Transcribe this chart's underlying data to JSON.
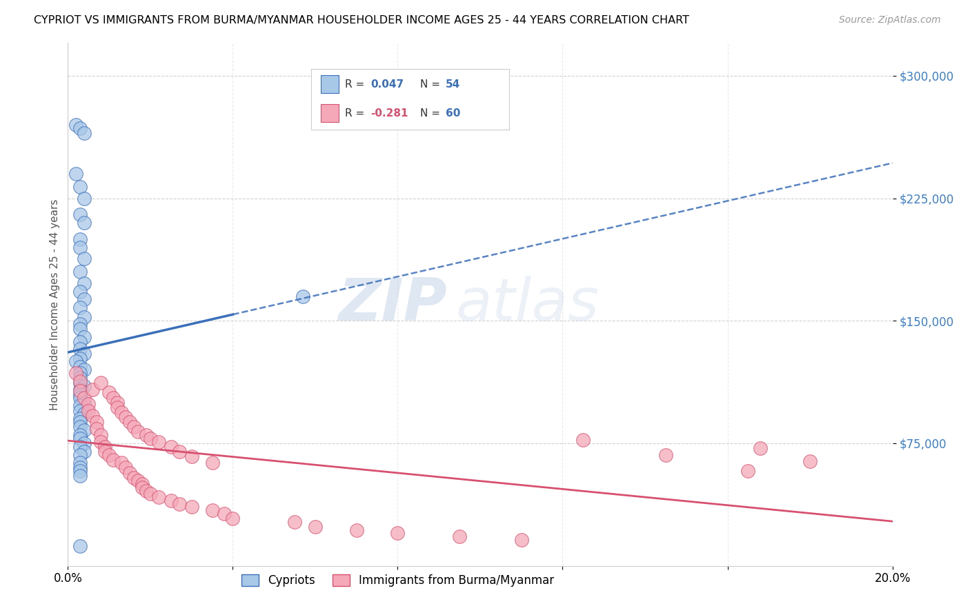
{
  "title": "CYPRIOT VS IMMIGRANTS FROM BURMA/MYANMAR HOUSEHOLDER INCOME AGES 25 - 44 YEARS CORRELATION CHART",
  "source": "Source: ZipAtlas.com",
  "ylabel": "Householder Income Ages 25 - 44 years",
  "xlim": [
    0.0,
    0.2
  ],
  "ylim": [
    0,
    320000
  ],
  "yticks": [
    75000,
    150000,
    225000,
    300000
  ],
  "ytick_labels": [
    "$75,000",
    "$150,000",
    "$225,000",
    "$300,000"
  ],
  "xticks": [
    0.0,
    0.04,
    0.08,
    0.12,
    0.16,
    0.2
  ],
  "xtick_labels": [
    "0.0%",
    "",
    "",
    "",
    "",
    "20.0%"
  ],
  "blue_color": "#a8c8e8",
  "pink_color": "#f4a8b8",
  "blue_line_color": "#3a6fba",
  "pink_line_color": "#d85070",
  "legend_label_blue": "Cypriots",
  "legend_label_pink": "Immigrants from Burma/Myanmar",
  "watermark_zip": "ZIP",
  "watermark_atlas": "atlas",
  "blue_R": "0.047",
  "blue_N": "54",
  "pink_R": "-0.281",
  "pink_N": "60",
  "blue_scatter_x": [
    0.002,
    0.003,
    0.004,
    0.002,
    0.003,
    0.004,
    0.003,
    0.004,
    0.003,
    0.003,
    0.004,
    0.003,
    0.004,
    0.003,
    0.004,
    0.003,
    0.004,
    0.003,
    0.003,
    0.004,
    0.003,
    0.003,
    0.004,
    0.003,
    0.002,
    0.003,
    0.004,
    0.003,
    0.003,
    0.003,
    0.004,
    0.003,
    0.003,
    0.003,
    0.004,
    0.003,
    0.003,
    0.004,
    0.003,
    0.003,
    0.003,
    0.004,
    0.003,
    0.003,
    0.004,
    0.003,
    0.004,
    0.003,
    0.057,
    0.003,
    0.003,
    0.003,
    0.003,
    0.003
  ],
  "blue_scatter_y": [
    270000,
    268000,
    265000,
    240000,
    232000,
    225000,
    215000,
    210000,
    200000,
    195000,
    188000,
    180000,
    173000,
    168000,
    163000,
    158000,
    152000,
    148000,
    145000,
    140000,
    137000,
    133000,
    130000,
    127000,
    125000,
    122000,
    120000,
    118000,
    115000,
    112000,
    110000,
    108000,
    105000,
    103000,
    100000,
    98000,
    95000,
    93000,
    90000,
    88000,
    85000,
    83000,
    80000,
    78000,
    75000,
    73000,
    70000,
    68000,
    165000,
    63000,
    60000,
    58000,
    55000,
    12000
  ],
  "pink_scatter_x": [
    0.002,
    0.003,
    0.003,
    0.004,
    0.005,
    0.005,
    0.006,
    0.006,
    0.007,
    0.007,
    0.008,
    0.008,
    0.008,
    0.009,
    0.009,
    0.01,
    0.01,
    0.011,
    0.011,
    0.012,
    0.012,
    0.013,
    0.013,
    0.014,
    0.014,
    0.015,
    0.015,
    0.016,
    0.016,
    0.017,
    0.017,
    0.018,
    0.018,
    0.019,
    0.019,
    0.02,
    0.02,
    0.022,
    0.022,
    0.025,
    0.025,
    0.027,
    0.027,
    0.03,
    0.03,
    0.035,
    0.035,
    0.038,
    0.04,
    0.055,
    0.06,
    0.07,
    0.08,
    0.095,
    0.11,
    0.125,
    0.145,
    0.165,
    0.168,
    0.18
  ],
  "pink_scatter_y": [
    118000,
    113000,
    107000,
    103000,
    99000,
    95000,
    108000,
    92000,
    88000,
    84000,
    112000,
    80000,
    76000,
    73000,
    70000,
    106000,
    68000,
    103000,
    65000,
    100000,
    97000,
    94000,
    63000,
    91000,
    60000,
    88000,
    57000,
    85000,
    54000,
    82000,
    52000,
    50000,
    48000,
    80000,
    46000,
    78000,
    44000,
    42000,
    76000,
    73000,
    40000,
    38000,
    70000,
    67000,
    36000,
    63000,
    34000,
    32000,
    29000,
    27000,
    24000,
    22000,
    20000,
    18000,
    16000,
    77000,
    68000,
    58000,
    72000,
    64000
  ]
}
